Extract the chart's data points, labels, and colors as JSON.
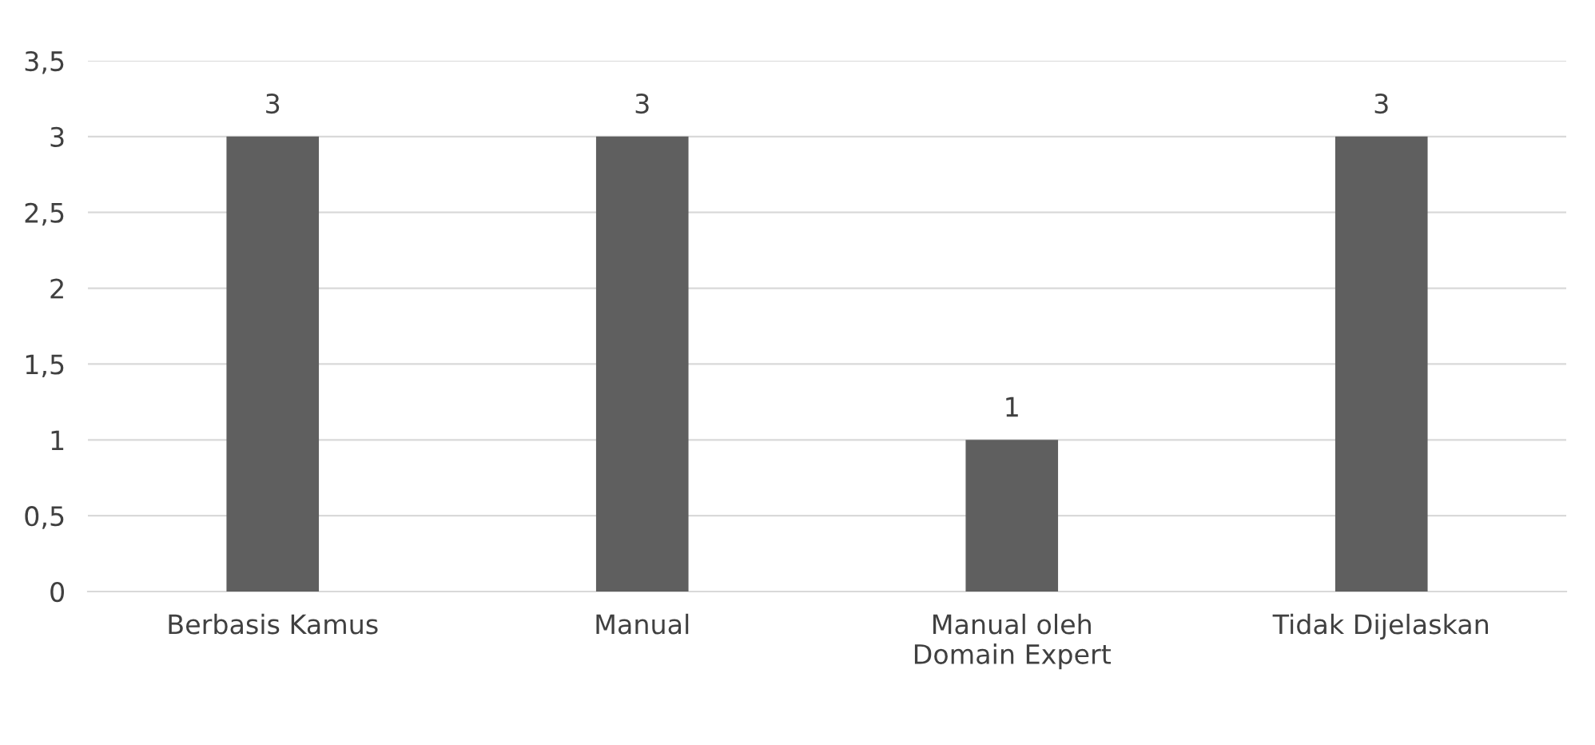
{
  "chart_data": {
    "type": "bar",
    "categories": [
      "Berbasis Kamus",
      "Manual",
      "Manual oleh\nDomain Expert",
      "Tidak Dijelaskan"
    ],
    "values": [
      3,
      3,
      1,
      3
    ],
    "color": "#5f5f5f",
    "ylim": [
      0,
      3.5
    ],
    "yticks": [
      {
        "value": 0,
        "label": "0"
      },
      {
        "value": 0.5,
        "label": "0,5"
      },
      {
        "value": 1,
        "label": "1"
      },
      {
        "value": 1.5,
        "label": "1,5"
      },
      {
        "value": 2,
        "label": "2"
      },
      {
        "value": 2.5,
        "label": "2,5"
      },
      {
        "value": 3,
        "label": "3"
      },
      {
        "value": 3.5,
        "label": "3,5"
      }
    ],
    "grid": "y",
    "data_labels": true
  }
}
